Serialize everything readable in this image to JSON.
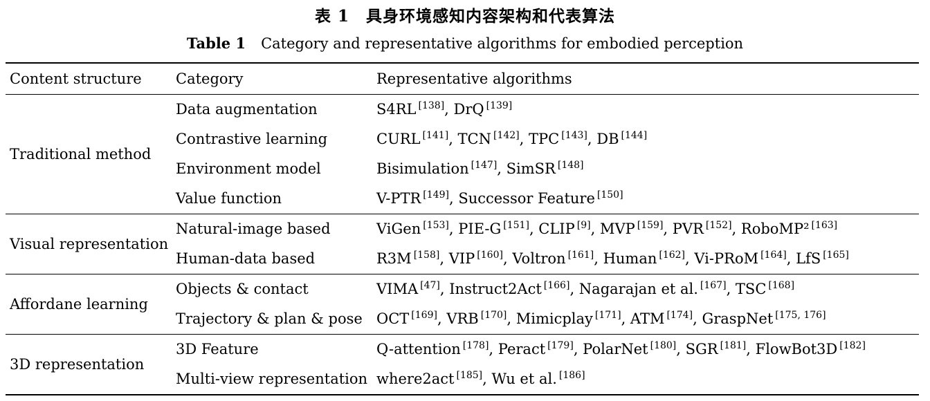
{
  "title_cn": {
    "label": "表 1",
    "text": "具身环境感知内容架构和代表算法"
  },
  "title_en": {
    "label": "Table 1",
    "text": "Category and representative algorithms for embodied perception"
  },
  "headers": {
    "structure": "Content structure",
    "category": "Category",
    "algorithms": "Representative algorithms"
  },
  "groups": [
    {
      "structure": "Traditional method",
      "rows": [
        {
          "category": "Data augmentation",
          "algorithms": [
            {
              "name": "S4RL",
              "ref": "[138]"
            },
            {
              "name": "DrQ",
              "ref": "[139]"
            }
          ]
        },
        {
          "category": "Contrastive learning",
          "algorithms": [
            {
              "name": "CURL",
              "ref": "[141]"
            },
            {
              "name": "TCN",
              "ref": "[142]"
            },
            {
              "name": "TPC",
              "ref": "[143]"
            },
            {
              "name": "DB",
              "ref": "[144]"
            }
          ]
        },
        {
          "category": "Environment model",
          "algorithms": [
            {
              "name": "Bisimulation",
              "ref": "[147]"
            },
            {
              "name": "SimSR",
              "ref": "[148]"
            }
          ]
        },
        {
          "category": "Value function",
          "algorithms": [
            {
              "name": "V-PTR",
              "ref": "[149]"
            },
            {
              "name": "Successor Feature",
              "ref": "[150]"
            }
          ]
        }
      ]
    },
    {
      "structure": "Visual representation",
      "rows": [
        {
          "category": "Natural-image based",
          "algorithms": [
            {
              "name": "ViGen",
              "ref": "[153]"
            },
            {
              "name": "PIE-G",
              "ref": "[151]"
            },
            {
              "name": "CLIP",
              "ref": "[9]"
            },
            {
              "name": "MVP",
              "ref": "[159]"
            },
            {
              "name": "PVR",
              "ref": "[152]"
            },
            {
              "name": "RoboMP²",
              "ref": "[163]"
            }
          ]
        },
        {
          "category": "Human-data based",
          "algorithms": [
            {
              "name": "R3M",
              "ref": "[158]"
            },
            {
              "name": "VIP",
              "ref": "[160]"
            },
            {
              "name": "Voltron",
              "ref": "[161]"
            },
            {
              "name": "Human",
              "ref": "[162]"
            },
            {
              "name": "Vi-PRoM",
              "ref": "[164]"
            },
            {
              "name": "LfS",
              "ref": "[165]"
            }
          ]
        }
      ]
    },
    {
      "structure": "Affordane learning",
      "rows": [
        {
          "category": "Objects & contact",
          "algorithms": [
            {
              "name": "VIMA",
              "ref": "[47]"
            },
            {
              "name": "Instruct2Act",
              "ref": "[166]"
            },
            {
              "name": "Nagarajan et al.",
              "ref": "[167]"
            },
            {
              "name": "TSC",
              "ref": "[168]"
            }
          ]
        },
        {
          "category": "Trajectory & plan & pose",
          "algorithms": [
            {
              "name": "OCT",
              "ref": "[169]"
            },
            {
              "name": "VRB",
              "ref": "[170]"
            },
            {
              "name": "Mimicplay",
              "ref": "[171]"
            },
            {
              "name": "ATM",
              "ref": "[174]"
            },
            {
              "name": "GraspNet",
              "ref": "[175, 176]"
            }
          ]
        }
      ]
    },
    {
      "structure": "3D representation",
      "rows": [
        {
          "category": "3D Feature",
          "algorithms": [
            {
              "name": "Q-attention",
              "ref": "[178]"
            },
            {
              "name": "Peract",
              "ref": "[179]"
            },
            {
              "name": "PolarNet",
              "ref": "[180]"
            },
            {
              "name": "SGR",
              "ref": "[181]"
            },
            {
              "name": "FlowBot3D",
              "ref": "[182]"
            }
          ]
        },
        {
          "category": "Multi-view representation",
          "algorithms": [
            {
              "name": "where2act",
              "ref": "[185]"
            },
            {
              "name": "Wu et al.",
              "ref": "[186]"
            }
          ]
        }
      ]
    }
  ]
}
